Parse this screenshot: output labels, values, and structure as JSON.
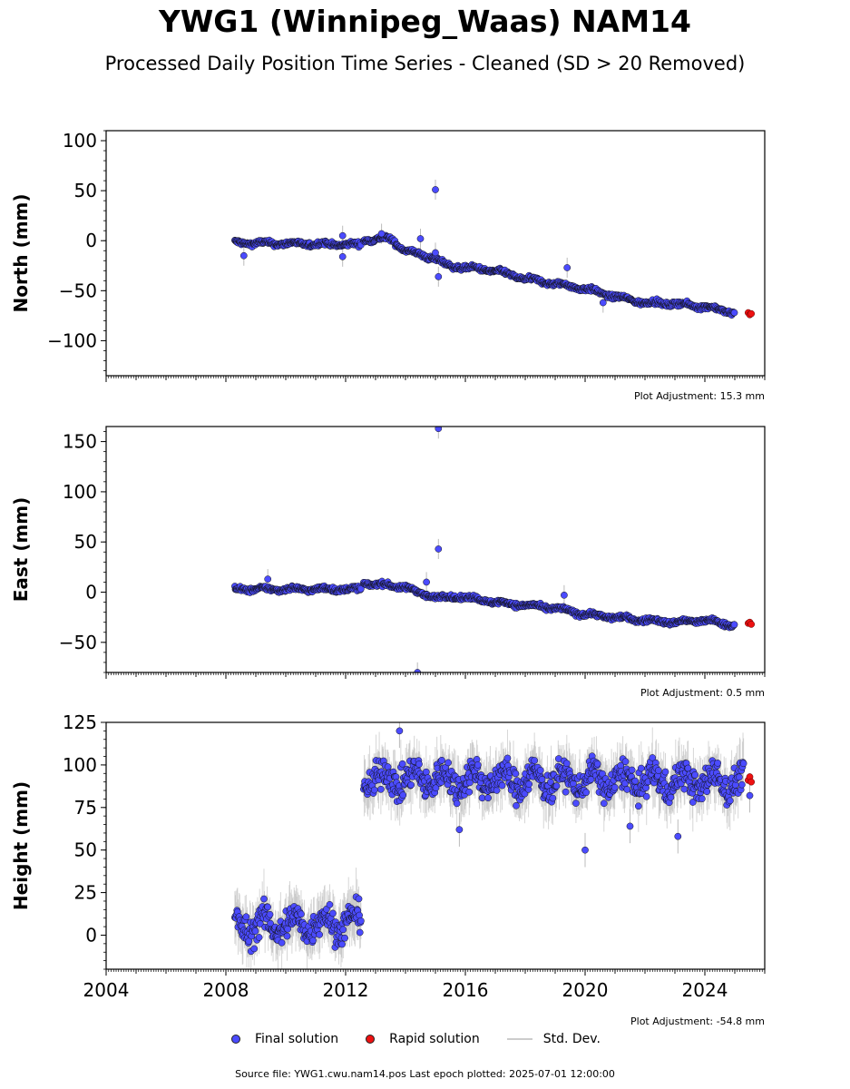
{
  "title": "YWG1 (Winnipeg_Waas) NAM14",
  "subtitle": "Processed Daily Position Time Series - Cleaned (SD > 20 Removed)",
  "footer": "Source file: YWG1.cwu.nam14.pos  Last epoch plotted: 2025-07-01 12:00:00",
  "legend": {
    "final": "Final solution",
    "rapid": "Rapid solution",
    "std": "Std. Dev."
  },
  "colors": {
    "final": "#4b4bff",
    "rapid": "#ee1111",
    "std": "#bbbbbb"
  },
  "chart_data": [
    {
      "type": "scatter",
      "ylabel": "North (mm)",
      "adjustment": "Plot Adjustment: 15.3 mm",
      "xlim": [
        2004,
        2026
      ],
      "ylim": [
        -135,
        110
      ],
      "yticks": [
        -100,
        -50,
        0,
        50,
        100
      ],
      "trend": [
        [
          2008.3,
          -2
        ],
        [
          2012.5,
          -4
        ],
        [
          2012.6,
          1
        ],
        [
          2013.5,
          2
        ],
        [
          2014,
          -10
        ],
        [
          2015,
          -18
        ],
        [
          2015.4,
          -25
        ],
        [
          2017,
          -30
        ],
        [
          2018,
          -38
        ],
        [
          2020,
          -48
        ],
        [
          2021,
          -56
        ],
        [
          2022,
          -62
        ],
        [
          2023,
          -63
        ],
        [
          2024,
          -66
        ],
        [
          2025,
          -72
        ]
      ],
      "noise": 2.2,
      "outliers": [
        [
          2008.6,
          -15
        ],
        [
          2011.9,
          5
        ],
        [
          2011.9,
          -16
        ],
        [
          2013.2,
          7
        ],
        [
          2014.5,
          2
        ],
        [
          2015.0,
          51
        ],
        [
          2015.0,
          -12
        ],
        [
          2015.1,
          -36
        ],
        [
          2019.4,
          -27
        ],
        [
          2020.6,
          -62
        ]
      ],
      "rapid": [
        [
          2025.45,
          -72
        ],
        [
          2025.5,
          -74
        ],
        [
          2025.55,
          -73
        ]
      ]
    },
    {
      "type": "scatter",
      "ylabel": "East (mm)",
      "adjustment": "Plot Adjustment: 0.5 mm",
      "xlim": [
        2004,
        2026
      ],
      "ylim": [
        -80,
        165
      ],
      "yticks": [
        -50,
        0,
        50,
        100,
        150
      ],
      "trend": [
        [
          2008.3,
          3
        ],
        [
          2012.5,
          3
        ],
        [
          2012.6,
          9
        ],
        [
          2014,
          5
        ],
        [
          2014.4,
          0
        ],
        [
          2015,
          -5
        ],
        [
          2016,
          -5
        ],
        [
          2017,
          -10
        ],
        [
          2018,
          -13
        ],
        [
          2019,
          -16
        ],
        [
          2020,
          -22
        ],
        [
          2021,
          -25
        ],
        [
          2022,
          -28
        ],
        [
          2023,
          -30
        ],
        [
          2024,
          -28
        ],
        [
          2025,
          -33
        ]
      ],
      "noise": 2.2,
      "outliers": [
        [
          2009.4,
          13
        ],
        [
          2014.7,
          10
        ],
        [
          2015.1,
          43
        ],
        [
          2015.1,
          163
        ],
        [
          2014.4,
          -80
        ],
        [
          2019.3,
          -3
        ]
      ],
      "rapid": [
        [
          2025.45,
          -31
        ],
        [
          2025.5,
          -30
        ],
        [
          2025.55,
          -32
        ]
      ]
    },
    {
      "type": "scatter",
      "ylabel": "Height (mm)",
      "adjustment": "Plot Adjustment: -54.8 mm",
      "xlim": [
        2004,
        2026
      ],
      "ylim": [
        -20,
        125
      ],
      "yticks": [
        0,
        25,
        50,
        75,
        100,
        125
      ],
      "trend": [
        [
          2008.3,
          5
        ],
        [
          2012.5,
          8
        ],
        [
          2012.6,
          92
        ],
        [
          2025.3,
          90
        ]
      ],
      "noise": 9,
      "outliers": [
        [
          2013.8,
          120
        ],
        [
          2015.8,
          62
        ],
        [
          2020.0,
          50
        ],
        [
          2021.5,
          64
        ],
        [
          2023.1,
          58
        ],
        [
          2025.5,
          82
        ]
      ],
      "rapid": [
        [
          2025.45,
          91
        ],
        [
          2025.5,
          93
        ],
        [
          2025.55,
          90
        ]
      ]
    }
  ],
  "xticks": [
    2004,
    2008,
    2012,
    2016,
    2020,
    2024
  ]
}
